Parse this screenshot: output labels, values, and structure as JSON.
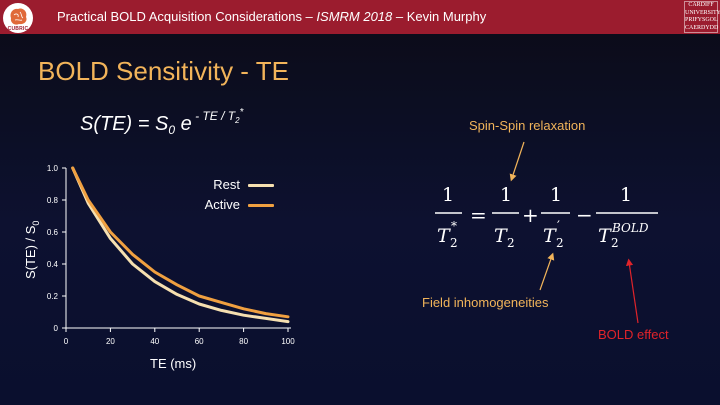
{
  "header": {
    "title_prefix": "Practical BOLD Acquisition Considerations – ",
    "title_venue": "ISMRM 2018",
    "title_suffix": " – Kevin Murphy",
    "left_logo_text": "CUBRIC",
    "right_logo_lines": [
      "CARDIFF",
      "UNIVERSITY",
      "PRIFYSGOL",
      "CAERDYDD"
    ]
  },
  "slide": {
    "title": "BOLD Sensitivity - TE"
  },
  "formula": {
    "lhs": "S(TE) = S",
    "s0_sub": "0",
    "e": " e",
    "exp": " - TE / T",
    "exp_sub": "2",
    "exp_star": "*"
  },
  "annotations": {
    "spin_spin": "Spin-Spin relaxation",
    "field": "Field inhomogeneities",
    "bold": "BOLD effect"
  },
  "equation": {
    "one": "1",
    "t": "T",
    "sub2": "2",
    "star": "*",
    "prime": "′",
    "bold_sup": "BOLD",
    "eq": "=",
    "plus": "+",
    "minus": "−"
  },
  "colors": {
    "header_bg": "#9b1c2e",
    "title": "#f2b45a",
    "rest": "#f6e0b0",
    "active": "#f0a040",
    "bold_effect": "#e0232a"
  },
  "chart_data": {
    "type": "line",
    "xlabel": "TE (ms)",
    "ylabel": "S(TE) / S",
    "ylabel_sub": "0",
    "xlim": [
      0,
      100
    ],
    "ylim": [
      0,
      1.0
    ],
    "xticks": [
      "0",
      "20",
      "40",
      "60",
      "80",
      "100"
    ],
    "yticks": [
      "0",
      "0.2",
      "0.4",
      "0.6",
      "0.8",
      "1.0"
    ],
    "legend_position": "top-right",
    "series": [
      {
        "name": "Rest",
        "x": [
          3,
          10,
          20,
          30,
          40,
          50,
          60,
          70,
          80,
          90,
          100
        ],
        "values": [
          1.0,
          0.78,
          0.56,
          0.4,
          0.29,
          0.21,
          0.15,
          0.11,
          0.08,
          0.06,
          0.04
        ]
      },
      {
        "name": "Active",
        "x": [
          3,
          10,
          20,
          30,
          40,
          50,
          60,
          70,
          80,
          90,
          100
        ],
        "values": [
          1.0,
          0.8,
          0.6,
          0.46,
          0.35,
          0.27,
          0.2,
          0.16,
          0.12,
          0.09,
          0.07
        ]
      }
    ]
  }
}
